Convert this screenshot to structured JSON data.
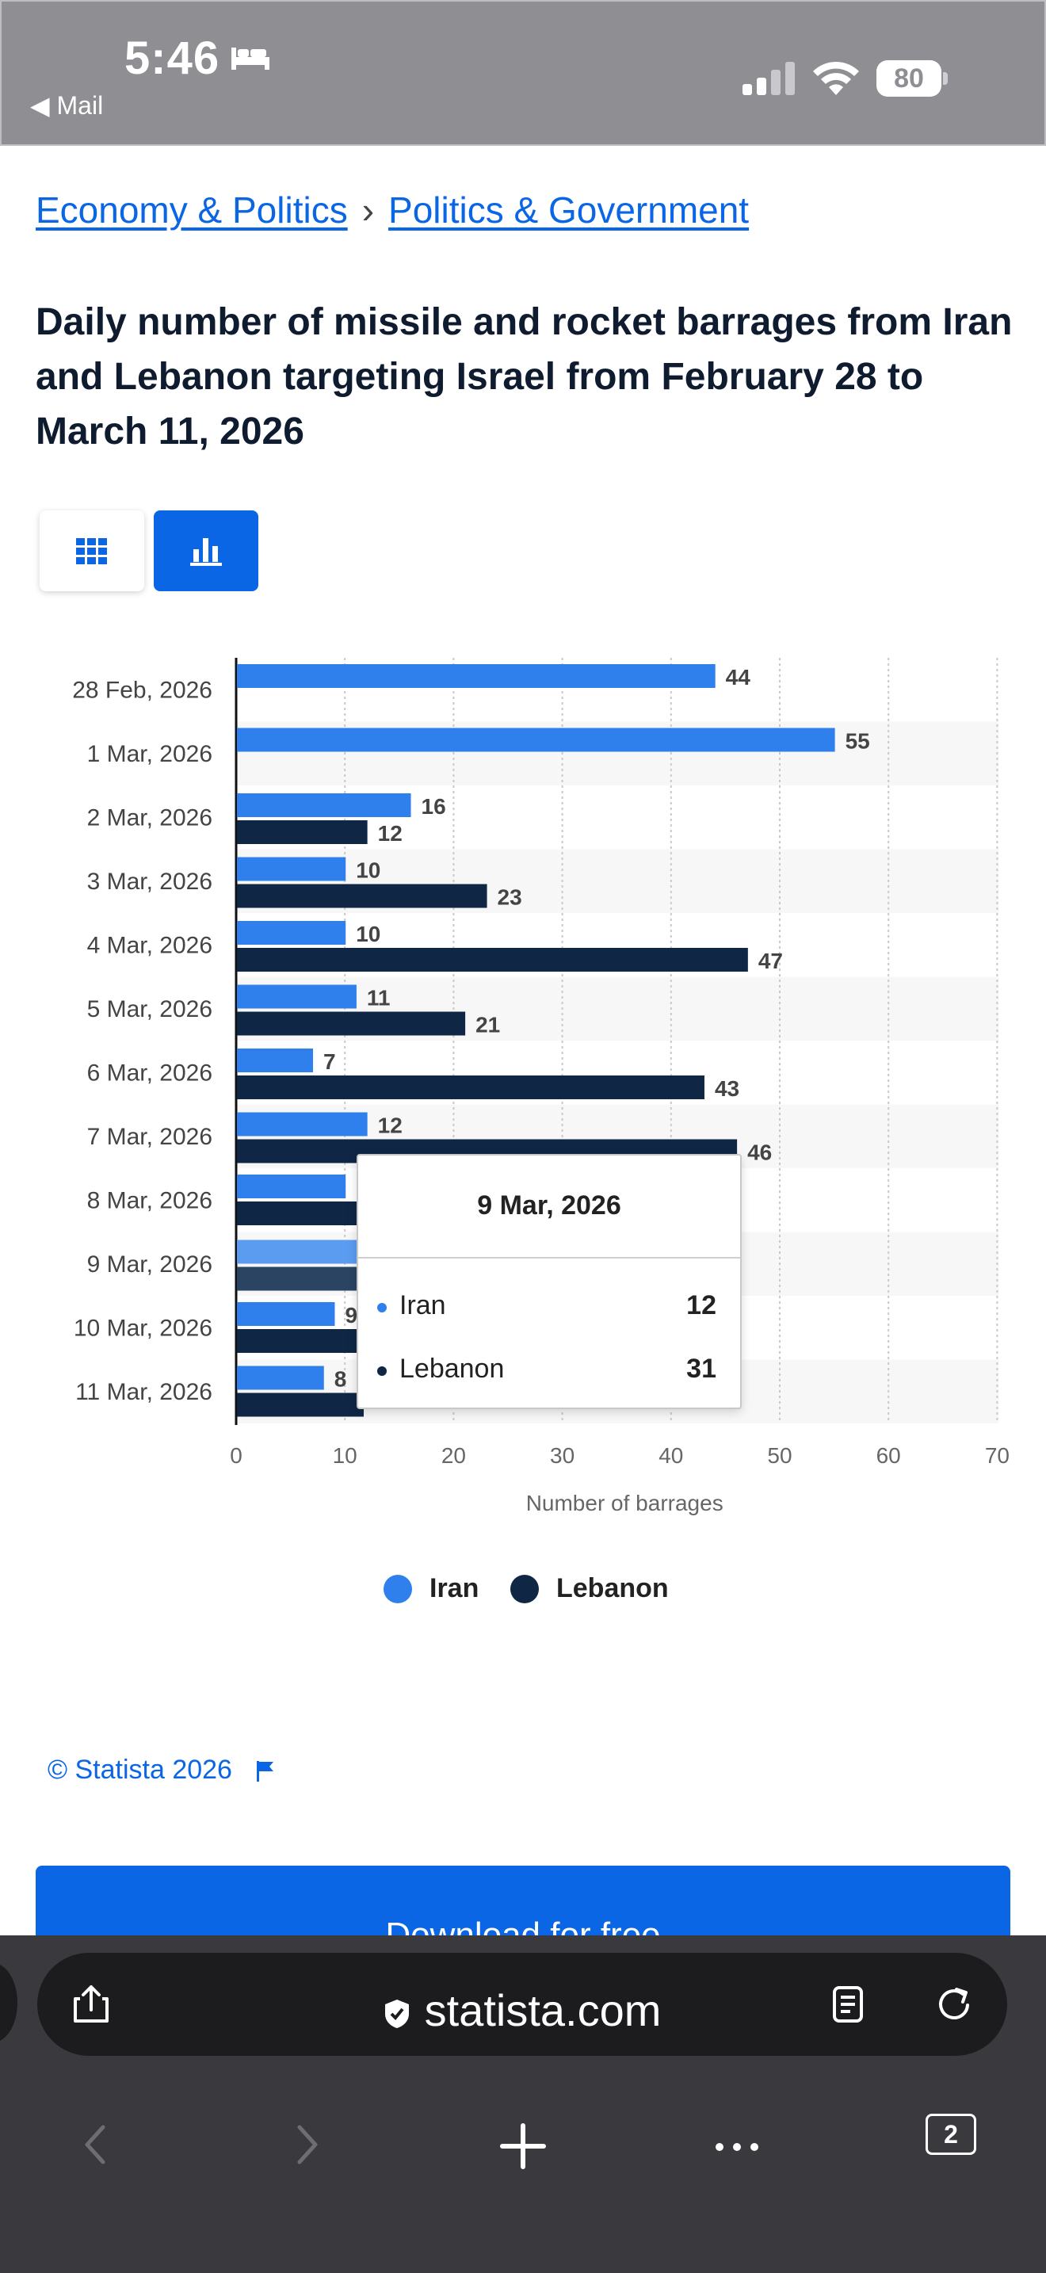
{
  "status": {
    "time": "5:46",
    "back_label": "Mail",
    "battery": "80"
  },
  "breadcrumb": {
    "level1": "Economy & Politics",
    "separator": "›",
    "level2": "Politics & Government"
  },
  "title": "Daily number of missile and rocket barrages from Iran and Lebanon targeting Israel from February 28 to March 11, 2026",
  "colors": {
    "iran": "#2f80ed",
    "lebanon": "#0f2744",
    "accent": "#0a66e4"
  },
  "chart_data": {
    "type": "bar",
    "orientation": "horizontal",
    "title": "",
    "xlabel": "Number of barrages",
    "ylabel": "",
    "xlim": [
      0,
      70
    ],
    "xticks": [
      0,
      10,
      20,
      30,
      40,
      50,
      60,
      70
    ],
    "grid": true,
    "legend_position": "bottom-center",
    "categories": [
      "28 Feb, 2026",
      "1 Mar, 2026",
      "2 Mar, 2026",
      "3 Mar, 2026",
      "4 Mar, 2026",
      "5 Mar, 2026",
      "6 Mar, 2026",
      "7 Mar, 2026",
      "8 Mar, 2026",
      "9 Mar, 2026",
      "10 Mar, 2026",
      "11 Mar, 2026"
    ],
    "series": [
      {
        "name": "Iran",
        "values": [
          44,
          55,
          16,
          10,
          10,
          11,
          7,
          12,
          10,
          12,
          9,
          8
        ]
      },
      {
        "name": "Lebanon",
        "values": [
          null,
          null,
          12,
          23,
          47,
          21,
          43,
          46,
          null,
          31,
          null,
          null
        ]
      }
    ]
  },
  "legend": {
    "iran": "Iran",
    "lebanon": "Lebanon"
  },
  "tooltip": {
    "title": "9 Mar, 2026",
    "rows": [
      {
        "label": "Iran",
        "value": "12"
      },
      {
        "label": "Lebanon",
        "value": "31"
      }
    ]
  },
  "copyright": "© Statista 2026",
  "download_label": "Download for free",
  "browser": {
    "url": "statista.com",
    "tab_count": "2"
  }
}
